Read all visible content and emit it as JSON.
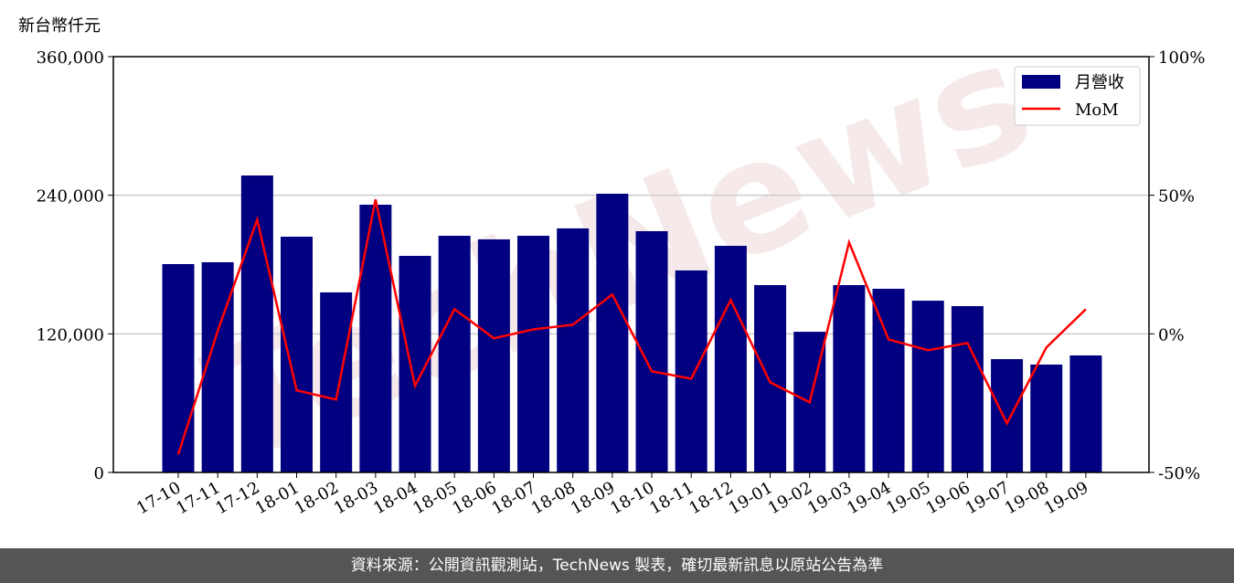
{
  "chart_data": {
    "type": "bar-line",
    "y_unit_label": "新台幣仟元",
    "watermark": "TechNews",
    "source": "資料來源：公開資訊觀測站，TechNews 製表，確切最新訊息以原站公告為準",
    "categories": [
      "17-10",
      "17-11",
      "17-12",
      "18-01",
      "18-02",
      "18-03",
      "18-04",
      "18-05",
      "18-06",
      "18-07",
      "18-08",
      "18-09",
      "18-10",
      "18-11",
      "18-12",
      "19-01",
      "19-02",
      "19-03",
      "19-04",
      "19-05",
      "19-06",
      "19-07",
      "19-08",
      "19-09"
    ],
    "series": [
      {
        "name": "月營收",
        "type": "bar",
        "color": "#000080",
        "values": [
          180400,
          182000,
          257100,
          204100,
          155900,
          231800,
          187500,
          204900,
          201800,
          204900,
          211300,
          241300,
          208900,
          174900,
          196200,
          162200,
          121800,
          162200,
          159000,
          148700,
          144000,
          98100,
          93400,
          101300
        ]
      },
      {
        "name": "MoM",
        "type": "line",
        "axis": "y2",
        "color": "#ff0000",
        "values": [
          -43.5,
          1.0,
          41.2,
          -20.4,
          -23.7,
          48.5,
          -18.8,
          8.9,
          -1.6,
          1.6,
          3.3,
          14.2,
          -13.5,
          -16.2,
          12.2,
          -17.5,
          -24.7,
          33.0,
          -2.0,
          -5.9,
          -3.3,
          -32.3,
          -4.9,
          8.9
        ]
      }
    ],
    "ylim": [
      0,
      360000
    ],
    "yticks": [
      0,
      {
        "value": 120000,
        "label": "120,000"
      },
      {
        "value": 240000,
        "label": "240,000"
      },
      {
        "value": 360000,
        "label": "360,000"
      }
    ],
    "y2lim": [
      -50,
      100
    ],
    "y2ticks": [
      {
        "value": -50,
        "label": "-50%"
      },
      {
        "value": 0,
        "label": "0%"
      },
      {
        "value": 50,
        "label": "50%"
      },
      {
        "value": 100,
        "label": "100%"
      }
    ],
    "grid": true,
    "legend": "upper right"
  }
}
